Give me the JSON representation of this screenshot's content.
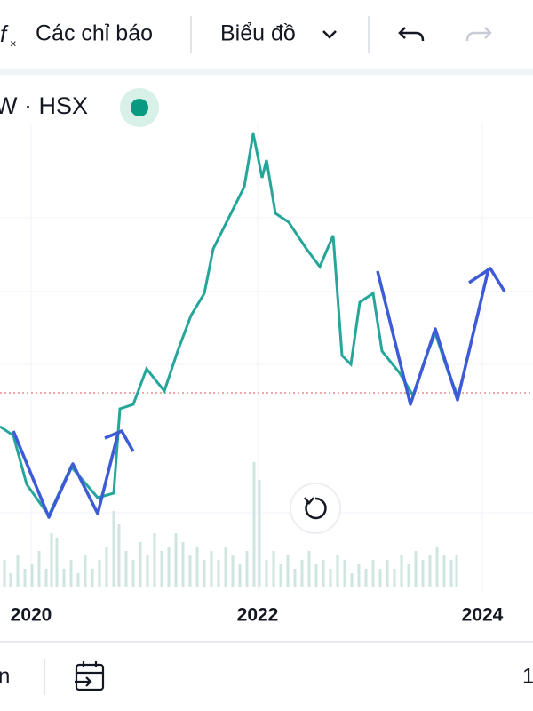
{
  "toolbar": {
    "indicators": "Các chỉ báo",
    "chart_type": "Biểu đồ"
  },
  "symbol": {
    "label": "W · HSX"
  },
  "x_axis": {
    "labels": [
      "2020",
      "2022",
      "2024"
    ]
  },
  "bottom_bar": {
    "left": "n",
    "right": "1"
  }
}
